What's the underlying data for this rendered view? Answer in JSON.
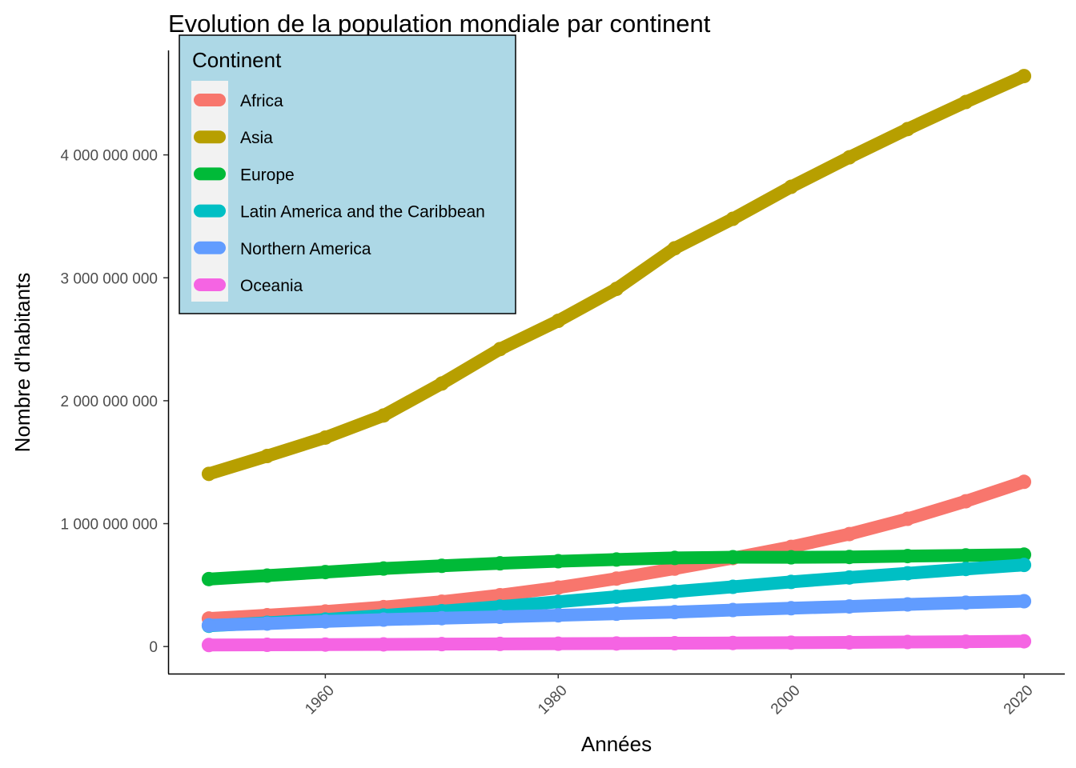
{
  "chart_data": {
    "type": "line",
    "title": "Evolution de la population mondiale par continent",
    "xlabel": "Années",
    "ylabel": "Nombre d'habitants",
    "xlim": [
      1946.5,
      2023.5
    ],
    "ylim": [
      -220000000,
      4850000000
    ],
    "x_ticks": [
      1960,
      1980,
      2000,
      2020
    ],
    "y_ticks": [
      0,
      1000000000,
      2000000000,
      3000000000,
      4000000000
    ],
    "y_tick_labels": [
      "0",
      "1 000 000 000",
      "2 000 000 000",
      "3 000 000 000",
      "4 000 000 000"
    ],
    "x_tick_labels": [
      "1960",
      "1980",
      "2000",
      "2020"
    ],
    "grid": false,
    "legend": {
      "title": "Continent",
      "placement": "top-left",
      "background": "#add8e6"
    },
    "x": [
      1950,
      1955,
      1960,
      1965,
      1970,
      1975,
      1980,
      1985,
      1990,
      1995,
      2000,
      2005,
      2010,
      2015,
      2020
    ],
    "series": [
      {
        "name": "Africa",
        "color": "#F8766D",
        "values": [
          228000000,
          255000000,
          285000000,
          321000000,
          365000000,
          418000000,
          480000000,
          553000000,
          634000000,
          720000000,
          811000000,
          915000000,
          1039000000,
          1182000000,
          1340000000
        ]
      },
      {
        "name": "Asia",
        "color": "#B79F00",
        "values": [
          1405000000,
          1550000000,
          1700000000,
          1880000000,
          2140000000,
          2420000000,
          2650000000,
          2910000000,
          3240000000,
          3480000000,
          3740000000,
          3980000000,
          4210000000,
          4430000000,
          4641000000
        ]
      },
      {
        "name": "Europe",
        "color": "#00BA38",
        "values": [
          549000000,
          577000000,
          606000000,
          635000000,
          657000000,
          677000000,
          694000000,
          708000000,
          721000000,
          727000000,
          726000000,
          729000000,
          736000000,
          742000000,
          748000000
        ]
      },
      {
        "name": "Latin America and the Caribbean",
        "color": "#00BFC4",
        "values": [
          169000000,
          193000000,
          220000000,
          253000000,
          288000000,
          325000000,
          364000000,
          405000000,
          447000000,
          486000000,
          526000000,
          562000000,
          596000000,
          631000000,
          664000000
        ]
      },
      {
        "name": "Northern America",
        "color": "#619CFF",
        "values": [
          173000000,
          187000000,
          205000000,
          219000000,
          231000000,
          242000000,
          254000000,
          267000000,
          280000000,
          297000000,
          312000000,
          326000000,
          343000000,
          357000000,
          369000000
        ]
      },
      {
        "name": "Oceania",
        "color": "#F564E3",
        "values": [
          12700000,
          14300000,
          16000000,
          17800000,
          19700000,
          21300000,
          22900000,
          24900000,
          27000000,
          29000000,
          31400000,
          33600000,
          36700000,
          39700000,
          43000000
        ]
      }
    ]
  }
}
